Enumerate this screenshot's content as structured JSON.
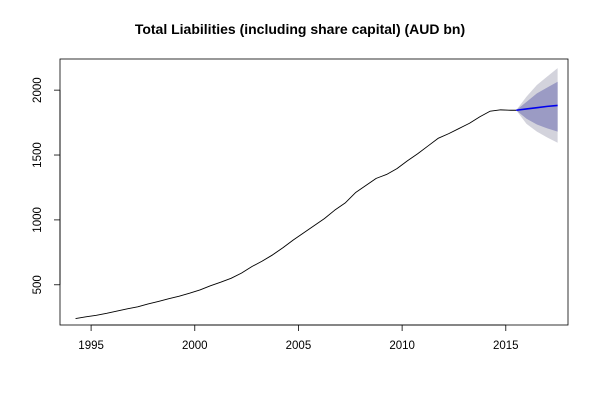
{
  "chart_data": {
    "type": "line",
    "title": "Total Liabilities (including share capital) (AUD bn)",
    "xlabel": "",
    "ylabel": "",
    "xlim": [
      1993.5,
      2018.0
    ],
    "ylim": [
      190,
      2240
    ],
    "x_ticks": [
      1995,
      2000,
      2005,
      2010,
      2015
    ],
    "y_ticks": [
      500,
      1000,
      1500,
      2000
    ],
    "grid": false,
    "legend": "none",
    "series": [
      {
        "role": "observed",
        "color": "#000000",
        "points": [
          [
            1994.25,
            240
          ],
          [
            1994.75,
            253
          ],
          [
            1995.25,
            265
          ],
          [
            1995.75,
            280
          ],
          [
            1996.25,
            297
          ],
          [
            1996.75,
            315
          ],
          [
            1997.25,
            330
          ],
          [
            1997.75,
            352
          ],
          [
            1998.25,
            372
          ],
          [
            1998.75,
            393
          ],
          [
            1999.25,
            412
          ],
          [
            1999.75,
            435
          ],
          [
            2000.25,
            460
          ],
          [
            2000.75,
            492
          ],
          [
            2001.25,
            520
          ],
          [
            2001.75,
            550
          ],
          [
            2002.25,
            590
          ],
          [
            2002.75,
            640
          ],
          [
            2003.25,
            682
          ],
          [
            2003.75,
            730
          ],
          [
            2004.25,
            785
          ],
          [
            2004.75,
            845
          ],
          [
            2005.25,
            900
          ],
          [
            2005.75,
            955
          ],
          [
            2006.25,
            1010
          ],
          [
            2006.75,
            1075
          ],
          [
            2007.25,
            1130
          ],
          [
            2007.75,
            1210
          ],
          [
            2008.25,
            1265
          ],
          [
            2008.75,
            1320
          ],
          [
            2009.25,
            1350
          ],
          [
            2009.75,
            1395
          ],
          [
            2010.25,
            1455
          ],
          [
            2010.75,
            1510
          ],
          [
            2011.25,
            1570
          ],
          [
            2011.75,
            1630
          ],
          [
            2012.25,
            1665
          ],
          [
            2012.75,
            1705
          ],
          [
            2013.25,
            1745
          ],
          [
            2013.75,
            1795
          ],
          [
            2014.25,
            1838
          ],
          [
            2014.75,
            1848
          ],
          [
            2015.25,
            1845
          ],
          [
            2015.5,
            1845
          ]
        ]
      },
      {
        "role": "forecast",
        "color": "#0000ee",
        "points": [
          [
            2015.5,
            1845
          ],
          [
            2016.0,
            1855
          ],
          [
            2016.5,
            1865
          ],
          [
            2017.0,
            1875
          ],
          [
            2017.5,
            1882
          ]
        ]
      }
    ],
    "intervals": [
      {
        "level": "outer",
        "color": "#d3d3dc",
        "x": [
          2015.5,
          2016.0,
          2016.5,
          2017.0,
          2017.5
        ],
        "lower": [
          1845,
          1740,
          1680,
          1635,
          1595
        ],
        "upper": [
          1845,
          1950,
          2040,
          2105,
          2170
        ]
      },
      {
        "level": "inner",
        "color": "#9b9bc4",
        "x": [
          2015.5,
          2016.0,
          2016.5,
          2017.0,
          2017.5
        ],
        "lower": [
          1845,
          1780,
          1735,
          1705,
          1680
        ],
        "upper": [
          1845,
          1910,
          1975,
          2020,
          2065
        ]
      }
    ]
  }
}
